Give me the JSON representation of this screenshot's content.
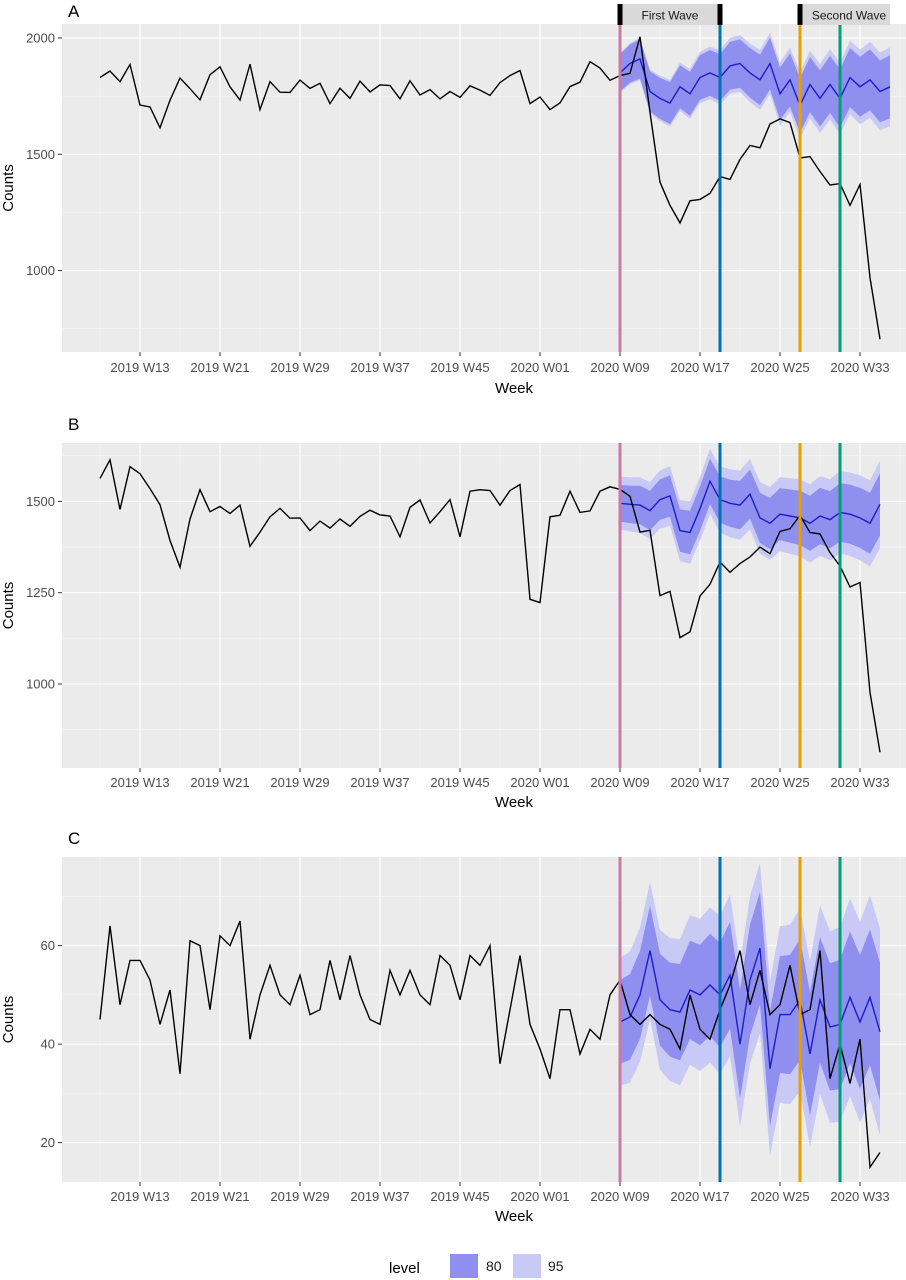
{
  "colors": {
    "panel_background": "#ebebeb",
    "grid": "#ffffff",
    "observed_line": "#000000",
    "forecast_line": "#1d1dc8",
    "band_80": "#8f8ff0",
    "band_95": "#c9c9f5",
    "wave_box": "#d9d9d9",
    "vlines": [
      "#cc79a7",
      "#0072b2",
      "#e69f00",
      "#009e73"
    ]
  },
  "legend": {
    "title": "level",
    "items": [
      {
        "label": "80",
        "color": "#8f8ff0"
      },
      {
        "label": "95",
        "color": "#c9c9f5"
      }
    ]
  },
  "wave_labels": [
    "First Wave",
    "Second Wave"
  ],
  "chart_data": [
    {
      "type": "line",
      "panel": "A",
      "xlabel": "Week",
      "ylabel": "Counts",
      "x_tick_labels": [
        "2019 W13",
        "2019 W21",
        "2019 W29",
        "2019 W37",
        "2019 W45",
        "2020 W01",
        "2020 W09",
        "2020 W17",
        "2020 W25",
        "2020 W33"
      ],
      "y_ticks": [
        1000,
        1500,
        2000
      ],
      "ylim": [
        650,
        2060
      ],
      "x_start": "2019 W09",
      "vertical_lines": [
        "2020 W09",
        "2020 W19",
        "2020 W27",
        "2020 W31"
      ],
      "wave_spans": [
        {
          "label": "First Wave",
          "from": "2020 W09",
          "to": "2020 W19"
        },
        {
          "label": "Second Wave",
          "from": "2020 W27",
          "to": "2020 W36"
        }
      ],
      "observed": [
        1830,
        1858,
        1812,
        1886,
        1712,
        1703,
        1614,
        1732,
        1828,
        1782,
        1734,
        1842,
        1876,
        1790,
        1733,
        1887,
        1692,
        1812,
        1767,
        1766,
        1819,
        1783,
        1805,
        1718,
        1784,
        1740,
        1814,
        1768,
        1798,
        1795,
        1738,
        1816,
        1755,
        1778,
        1738,
        1770,
        1745,
        1794,
        1776,
        1753,
        1808,
        1838,
        1860,
        1718,
        1746,
        1692,
        1721,
        1791,
        1810,
        1898,
        1871,
        1818,
        1838,
        1848,
        2005,
        1680,
        1380,
        1280,
        1205,
        1300,
        1306,
        1332,
        1404,
        1392,
        1478,
        1538,
        1528,
        1630,
        1652,
        1636,
        1484,
        1490,
        1426,
        1368,
        1374,
        1280,
        1370,
        970,
        705
      ],
      "forecast": {
        "start": "2020 W09",
        "mean": [
          1850,
          1890,
          1910,
          1770,
          1740,
          1720,
          1790,
          1760,
          1830,
          1850,
          1830,
          1880,
          1890,
          1850,
          1820,
          1890,
          1760,
          1820,
          1710,
          1800,
          1740,
          1800,
          1740,
          1830,
          1790,
          1820,
          1770,
          1790
        ],
        "band80": [
          160,
          270
        ],
        "band95": [
          170,
          340
        ]
      }
    },
    {
      "type": "line",
      "panel": "B",
      "xlabel": "Week",
      "ylabel": "Counts",
      "x_tick_labels": [
        "2019 W13",
        "2019 W21",
        "2019 W29",
        "2019 W37",
        "2019 W45",
        "2020 W01",
        "2020 W09",
        "2020 W17",
        "2020 W25",
        "2020 W33"
      ],
      "y_ticks": [
        1000,
        1250,
        1500
      ],
      "ylim": [
        770,
        1660
      ],
      "x_start": "2019 W09",
      "vertical_lines": [
        "2020 W09",
        "2020 W19",
        "2020 W27",
        "2020 W31"
      ],
      "observed": [
        1563,
        1614,
        1478,
        1595,
        1576,
        1535,
        1491,
        1393,
        1320,
        1452,
        1532,
        1472,
        1486,
        1467,
        1490,
        1377,
        1416,
        1458,
        1481,
        1454,
        1455,
        1420,
        1446,
        1427,
        1452,
        1432,
        1459,
        1476,
        1463,
        1460,
        1403,
        1484,
        1504,
        1441,
        1472,
        1505,
        1403,
        1528,
        1532,
        1530,
        1490,
        1530,
        1546,
        1232,
        1223,
        1458,
        1462,
        1528,
        1470,
        1474,
        1528,
        1540,
        1533,
        1514,
        1416,
        1421,
        1242,
        1254,
        1127,
        1143,
        1241,
        1273,
        1334,
        1306,
        1330,
        1348,
        1375,
        1357,
        1418,
        1425,
        1462,
        1415,
        1411,
        1360,
        1323,
        1266,
        1278,
        977,
        813
      ],
      "forecast": {
        "start": "2020 W09",
        "mean": [
          1495,
          1492,
          1490,
          1475,
          1505,
          1515,
          1420,
          1415,
          1480,
          1555,
          1505,
          1495,
          1490,
          1520,
          1455,
          1440,
          1465,
          1460,
          1455,
          1440,
          1460,
          1450,
          1470,
          1465,
          1455,
          1440,
          1492
        ],
        "band80": [
          100,
          170
        ],
        "band95": [
          145,
          240
        ]
      }
    },
    {
      "type": "line",
      "panel": "C",
      "xlabel": "Week",
      "ylabel": "Counts",
      "x_tick_labels": [
        "2019 W13",
        "2019 W21",
        "2019 W29",
        "2019 W37",
        "2019 W45",
        "2020 W01",
        "2020 W09",
        "2020 W17",
        "2020 W25",
        "2020 W33"
      ],
      "y_ticks": [
        20,
        40,
        60
      ],
      "ylim": [
        12,
        78
      ],
      "x_start": "2019 W09",
      "vertical_lines": [
        "2020 W09",
        "2020 W19",
        "2020 W27",
        "2020 W31"
      ],
      "observed": [
        45,
        64,
        48,
        57,
        57,
        53,
        44,
        51,
        34,
        61,
        60,
        47,
        62,
        60,
        65,
        41,
        50,
        56,
        50,
        48,
        54,
        46,
        47,
        57,
        49,
        58,
        50,
        45,
        44,
        55,
        50,
        55,
        50,
        48,
        58,
        56,
        49,
        58,
        56,
        60,
        36,
        47,
        58,
        44,
        39,
        33,
        47,
        47,
        38,
        43,
        41,
        50,
        53,
        46,
        44,
        46,
        44,
        43,
        39,
        50,
        43,
        41,
        47,
        52,
        59,
        48,
        55,
        46,
        48,
        56,
        46,
        47,
        59,
        33,
        40,
        32,
        41,
        15,
        18
      ],
      "forecast": {
        "start": "2020 W09",
        "mean": [
          44.5,
          45.5,
          50,
          59,
          49,
          47,
          46.5,
          51,
          50,
          52,
          50,
          54,
          40,
          53,
          59.5,
          35,
          46,
          46,
          49,
          38,
          49,
          43.5,
          44,
          49.5,
          44.5,
          49.5,
          42.5
        ],
        "band80": [
          17,
          28
        ],
        "band95": [
          26,
          42
        ]
      }
    }
  ]
}
